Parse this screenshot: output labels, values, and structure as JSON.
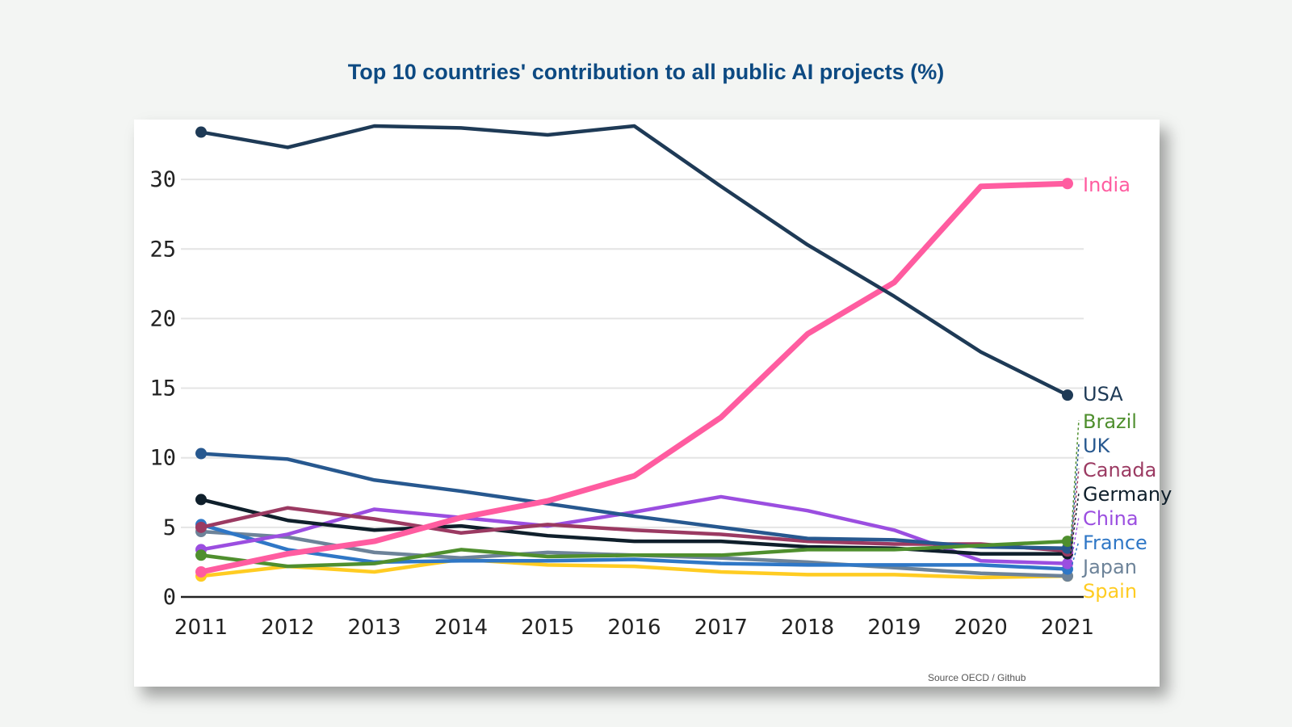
{
  "title": "Top 10 countries' contribution to all public AI projects (%)",
  "source": "Source OECD / Github",
  "chart_data": {
    "type": "line",
    "title": "Top 10 countries' contribution to all public AI projects (%)",
    "xlabel": "",
    "ylabel": "",
    "x": [
      2011,
      2012,
      2013,
      2014,
      2015,
      2016,
      2017,
      2018,
      2019,
      2020,
      2021
    ],
    "x_tick_labels": [
      "2011",
      "2012",
      "2013",
      "2014",
      "2015",
      "2016",
      "2017",
      "2018",
      "2019",
      "2020",
      "2021"
    ],
    "y_ticks": [
      0,
      5,
      10,
      15,
      20,
      25,
      30
    ],
    "y_tick_labels": [
      "0",
      "5",
      "10",
      "15",
      "20",
      "25",
      "30"
    ],
    "ylim": [
      0,
      34
    ],
    "grid": true,
    "legend": "direct labels at right end of lines",
    "series": [
      {
        "name": "USA",
        "color": "#1e3a56",
        "values": [
          33.4,
          32.3,
          34.0,
          33.7,
          33.2,
          34.0,
          29.5,
          25.3,
          21.6,
          17.6,
          14.5
        ]
      },
      {
        "name": "India",
        "color": "#ff5ca0",
        "values": [
          1.8,
          3.1,
          4.0,
          5.7,
          6.9,
          8.7,
          12.9,
          18.9,
          22.6,
          29.5,
          29.7
        ]
      },
      {
        "name": "Brazil",
        "color": "#4f8f2e",
        "values": [
          3.0,
          2.2,
          2.4,
          3.4,
          2.9,
          3.0,
          3.0,
          3.4,
          3.4,
          3.7,
          4.0
        ]
      },
      {
        "name": "UK",
        "color": "#27588f",
        "values": [
          10.3,
          9.9,
          8.4,
          7.6,
          6.7,
          5.8,
          5.0,
          4.2,
          4.1,
          3.6,
          3.5
        ]
      },
      {
        "name": "Canada",
        "color": "#9b3a62",
        "values": [
          5.0,
          6.4,
          5.6,
          4.6,
          5.2,
          4.8,
          4.5,
          4.0,
          3.8,
          3.8,
          3.3
        ]
      },
      {
        "name": "Germany",
        "color": "#0f1f2b",
        "values": [
          7.0,
          5.5,
          4.8,
          5.1,
          4.4,
          4.0,
          4.0,
          3.6,
          3.5,
          3.1,
          3.1
        ]
      },
      {
        "name": "China",
        "color": "#9b4ee0",
        "values": [
          3.4,
          4.5,
          6.3,
          5.7,
          5.1,
          6.1,
          7.2,
          6.2,
          4.8,
          2.6,
          2.4
        ]
      },
      {
        "name": "France",
        "color": "#2f77c6",
        "values": [
          5.2,
          3.4,
          2.5,
          2.6,
          2.6,
          2.7,
          2.4,
          2.3,
          2.3,
          2.3,
          2.0
        ]
      },
      {
        "name": "Japan",
        "color": "#6d8399",
        "values": [
          4.7,
          4.3,
          3.2,
          2.8,
          3.2,
          3.0,
          2.8,
          2.5,
          2.1,
          1.7,
          1.5
        ]
      },
      {
        "name": "Spain",
        "color": "#ffcc22",
        "values": [
          1.5,
          2.2,
          1.8,
          2.7,
          2.3,
          2.2,
          1.8,
          1.6,
          1.6,
          1.4,
          1.5
        ]
      }
    ]
  }
}
